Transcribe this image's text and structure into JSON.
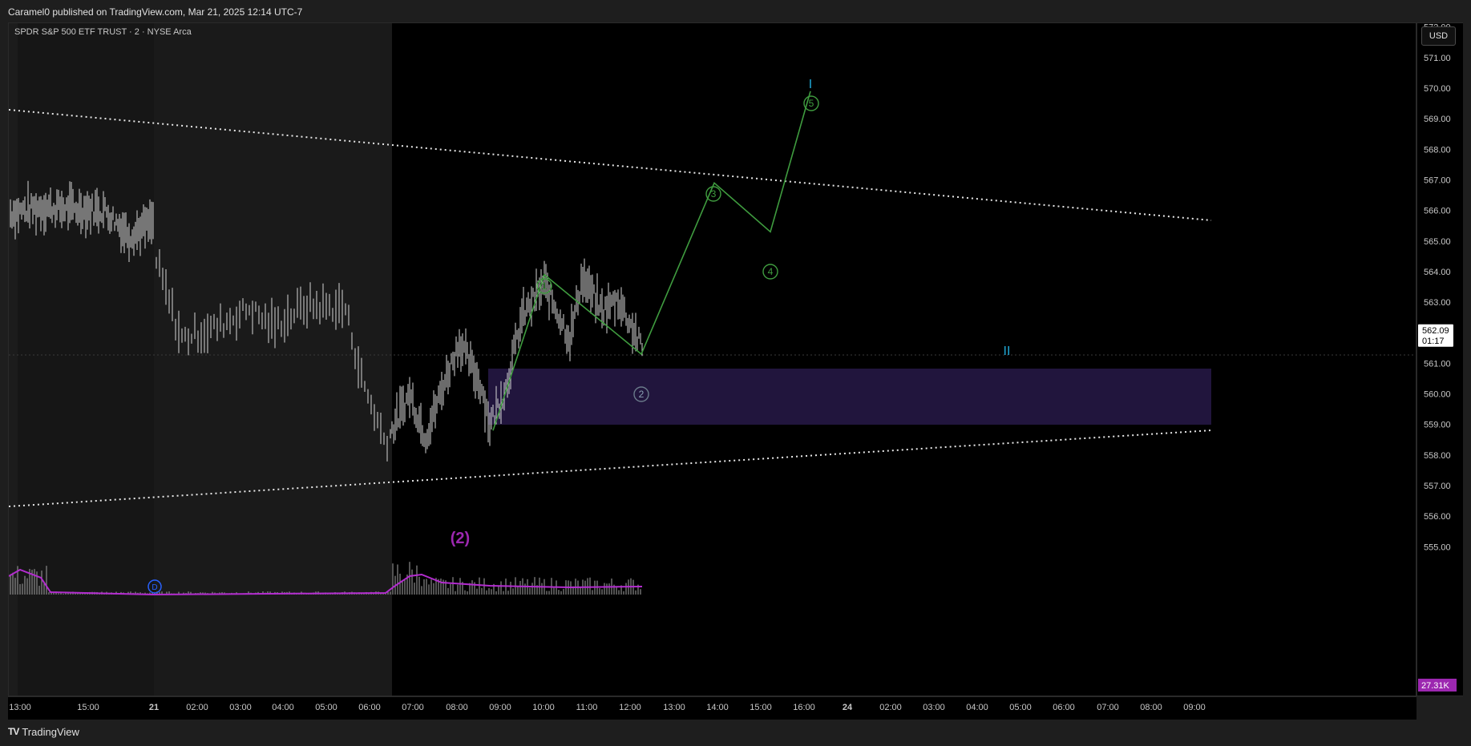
{
  "header": {
    "published_text": "Caramel0 published on TradingView.com, Mar 21, 2025 12:14 UTC-7"
  },
  "chart": {
    "symbol_title": "SPDR S&P 500 ETF TRUST · 2 · NYSE Arca",
    "currency": "USD",
    "current_price": "562.09",
    "countdown": "01:17",
    "volume_value": "27.31K",
    "price_ticks": [
      "572.00",
      "571.00",
      "570.00",
      "569.00",
      "568.00",
      "567.00",
      "566.00",
      "565.00",
      "564.00",
      "563.00",
      "561.00",
      "560.00",
      "559.00",
      "558.00",
      "557.00",
      "556.00",
      "555.00"
    ],
    "time_ticks": [
      "13:00",
      "15:00",
      "21",
      "02:00",
      "03:00",
      "04:00",
      "05:00",
      "06:00",
      "07:00",
      "08:00",
      "09:00",
      "10:00",
      "11:00",
      "12:00",
      "13:00",
      "14:00",
      "15:00",
      "16:00",
      "24",
      "02:00",
      "03:00",
      "04:00",
      "05:00",
      "06:00",
      "07:00",
      "08:00",
      "09:00"
    ],
    "wave_labels": [
      "1",
      "2",
      "3",
      "4",
      "5"
    ],
    "cycle_labels": [
      "I",
      "II"
    ],
    "correction_label": "(2)",
    "dividend_marker": "D",
    "colors": {
      "wave": "#3f9c3f",
      "cycle": "#1fa8d6",
      "correction": "#9c27b0",
      "zone": "#231640",
      "volume_line": "#b32ccf"
    }
  },
  "chart_data": {
    "type": "line",
    "title": "SPDR S&P 500 ETF TRUST · 2 · NYSE Arca",
    "ylim": [
      554.6,
      572.5
    ],
    "elliott_wave_projection": [
      {
        "label": "start",
        "price": 558.8
      },
      {
        "label": "1",
        "price": 563.9
      },
      {
        "label": "2",
        "price": 561.3
      },
      {
        "label": "3",
        "price": 566.9
      },
      {
        "label": "4",
        "price": 565.3
      },
      {
        "label": "5",
        "price": 569.9
      }
    ],
    "support_zone": [
      559.8,
      561.6
    ],
    "last_price": 562.09
  },
  "footer": {
    "brand": "TradingView",
    "logo": "TV"
  }
}
